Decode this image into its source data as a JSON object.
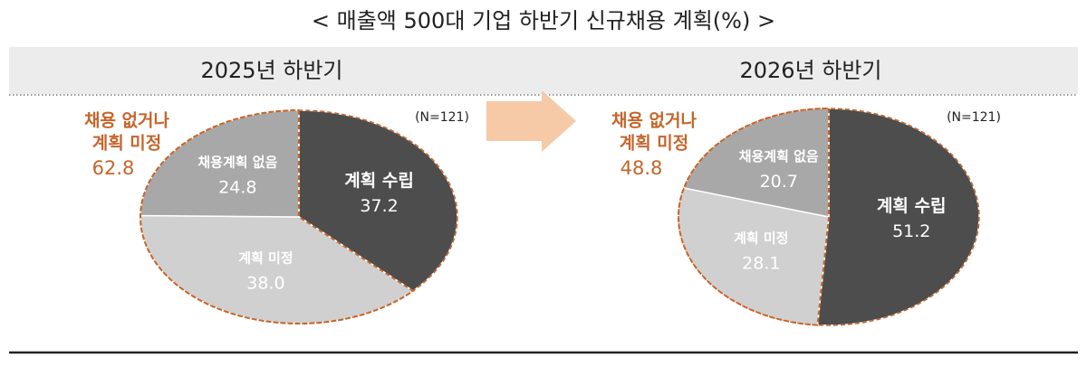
{
  "title": "< 매출액 500대 기업 하반기 신규채용 계획(%) >",
  "chart_data": [
    {
      "type": "pie",
      "title": "2025년 하반기",
      "note": "(N=121)",
      "categories": [
        "계획 수립",
        "계획 미정",
        "채용계획 없음"
      ],
      "values": [
        37.2,
        38.0,
        24.8
      ],
      "value_labels": [
        "37.2",
        "38.0",
        "24.8"
      ],
      "colors": [
        "#4d4d4d",
        "#d0d0d0",
        "#a8a8a8"
      ],
      "group": {
        "label_lines": [
          "채용 없거나",
          "계획 미정"
        ],
        "value": 62.8,
        "color": "#c5652b"
      }
    },
    {
      "type": "pie",
      "title": "2026년 하반기",
      "note": "(N=121)",
      "categories": [
        "계획 수립",
        "계획 미정",
        "채용계획 없음"
      ],
      "values": [
        51.2,
        28.1,
        20.7
      ],
      "value_labels": [
        "51.2",
        "28.1",
        "20.7"
      ],
      "colors": [
        "#4d4d4d",
        "#d0d0d0",
        "#a8a8a8"
      ],
      "group": {
        "label_lines": [
          "채용 없거나",
          "계획 미정"
        ],
        "value": 48.8,
        "color": "#c5652b"
      }
    }
  ]
}
